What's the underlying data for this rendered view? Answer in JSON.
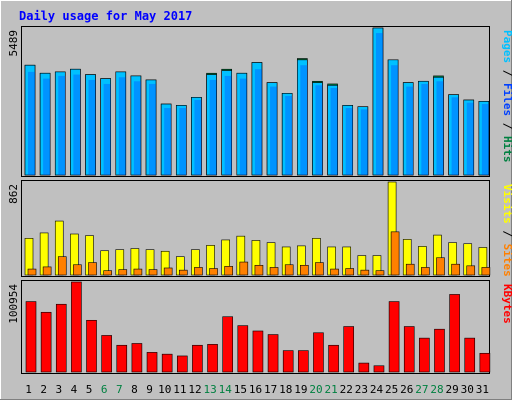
{
  "chart_data": {
    "type": "bar",
    "title": "Daily usage for May 2017",
    "categories": [
      "1",
      "2",
      "3",
      "4",
      "5",
      "6",
      "7",
      "8",
      "9",
      "10",
      "11",
      "12",
      "13",
      "14",
      "15",
      "16",
      "17",
      "18",
      "19",
      "20",
      "21",
      "22",
      "23",
      "24",
      "25",
      "26",
      "27",
      "28",
      "29",
      "30",
      "31"
    ],
    "weekend_days": [
      "6",
      "7",
      "13",
      "14",
      "20",
      "21",
      "27",
      "28"
    ],
    "panels": [
      {
        "name": "pages-files-hits",
        "max_label": "5489",
        "ymax": 5489,
        "right_labels": [
          {
            "text": "Pages",
            "color": "#00c0ff"
          },
          {
            "text": " / ",
            "color": "#000000"
          },
          {
            "text": "Files",
            "color": "#0040ff"
          },
          {
            "text": " / ",
            "color": "#000000"
          },
          {
            "text": "Hits",
            "color": "#008040"
          }
        ],
        "series": [
          {
            "name": "Hits",
            "color": "#008040",
            "values": [
              4100,
              3800,
              3850,
              3950,
              3750,
              3600,
              3850,
              3700,
              3550,
              2650,
              2600,
              2900,
              3800,
              3950,
              3800,
              4200,
              3450,
              3050,
              4350,
              3500,
              3400,
              2600,
              2550,
              5489,
              4300,
              3450,
              3500,
              3700,
              3000,
              2800,
              2750
            ]
          },
          {
            "name": "Files",
            "color": "#0040ff",
            "values": [
              3850,
              3600,
              3700,
              3750,
              3550,
              3400,
              3650,
              3500,
              3400,
              2500,
              2500,
              2800,
              3550,
              3700,
              3600,
              3950,
              3300,
              2950,
              4100,
              3350,
              3250,
              2500,
              2450,
              5300,
              4100,
              3300,
              3400,
              3500,
              2900,
              2700,
              2650
            ]
          },
          {
            "name": "Pages",
            "color": "#00c0ff",
            "values": [
              4100,
              3800,
              3850,
              3950,
              3750,
              3600,
              3850,
              3700,
              3550,
              2650,
              2600,
              2900,
              3750,
              3900,
              3800,
              4200,
              3450,
              3050,
              4300,
              3450,
              3350,
              2600,
              2550,
              5489,
              4300,
              3450,
              3500,
              3650,
              3000,
              2800,
              2750
            ]
          }
        ]
      },
      {
        "name": "visits-sites",
        "max_label": "862",
        "ymax": 862,
        "right_labels": [
          {
            "text": "Visits",
            "color": "#ffff00"
          },
          {
            "text": " / ",
            "color": "#000000"
          },
          {
            "text": "Sites",
            "color": "#ff8000"
          }
        ],
        "series": [
          {
            "name": "Visits",
            "color": "#ffff00",
            "values": [
              340,
              390,
              500,
              380,
              365,
              225,
              235,
              245,
              235,
              220,
              170,
              235,
              275,
              325,
              360,
              320,
              300,
              260,
              270,
              340,
              260,
              260,
              180,
              180,
              862,
              330,
              265,
              370,
              300,
              290,
              255
            ]
          },
          {
            "name": "Sites",
            "color": "#ff8000",
            "values": [
              55,
              75,
              170,
              95,
              115,
              40,
              50,
              55,
              50,
              65,
              45,
              70,
              60,
              80,
              120,
              90,
              70,
              95,
              90,
              115,
              55,
              60,
              45,
              40,
              400,
              100,
              70,
              160,
              100,
              85,
              70
            ]
          }
        ]
      },
      {
        "name": "kbytes",
        "max_label": "100954",
        "ymax": 100954,
        "right_labels": [
          {
            "text": "KBytes",
            "color": "#ff0000"
          }
        ],
        "series": [
          {
            "name": "KBytes",
            "color": "#ff0000",
            "values": [
              79000,
              67000,
              76000,
              100954,
              58000,
              41000,
              30000,
              32000,
              22000,
              20000,
              18000,
              30000,
              31000,
              62000,
              52000,
              46000,
              42000,
              24000,
              24000,
              44000,
              30000,
              51000,
              10000,
              7000,
              79000,
              51000,
              38000,
              48000,
              87000,
              38000,
              21000
            ]
          }
        ]
      }
    ]
  }
}
